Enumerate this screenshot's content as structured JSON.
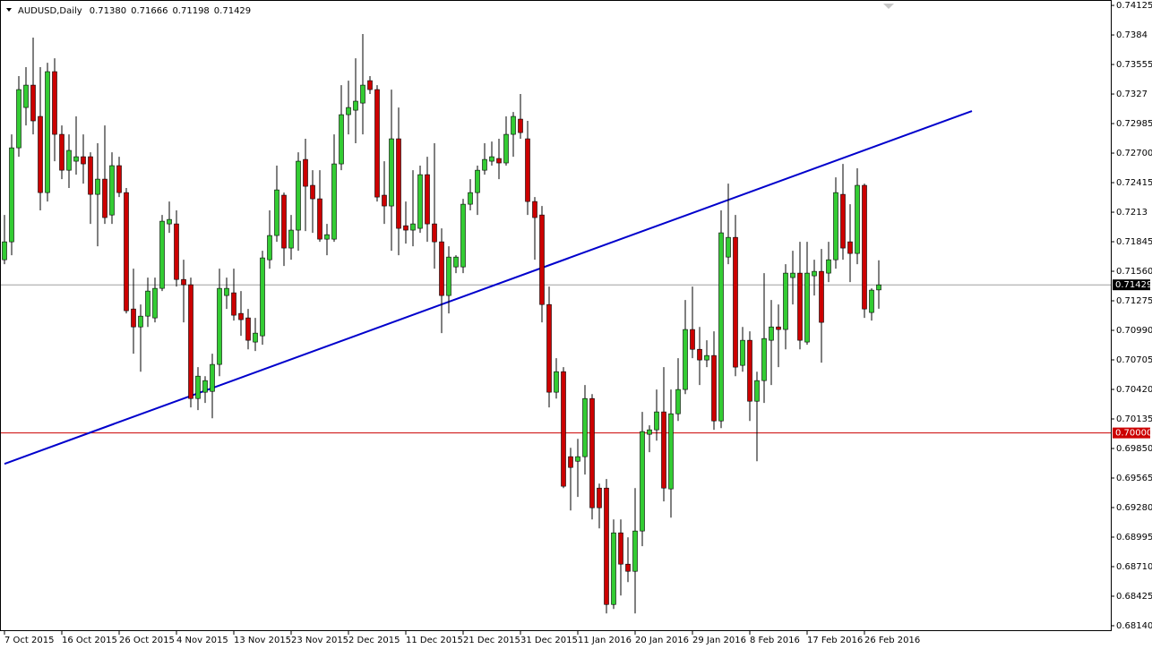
{
  "chart_data": {
    "type": "candlestick",
    "title": "AUDUSD,Daily",
    "header_values": [
      "0.71380",
      "0.71666",
      "0.71198",
      "0.71429"
    ],
    "categories": [
      "7 Oct 2015",
      null,
      null,
      null,
      null,
      null,
      null,
      null,
      "16 Oct 2015",
      null,
      null,
      null,
      null,
      null,
      null,
      null,
      "26 Oct 2015",
      null,
      null,
      null,
      null,
      null,
      null,
      null,
      "4 Nov 2015",
      null,
      null,
      null,
      null,
      null,
      null,
      null,
      "13 Nov 2015",
      null,
      null,
      null,
      null,
      null,
      null,
      null,
      "23 Nov 2015",
      null,
      null,
      null,
      null,
      null,
      null,
      null,
      "2 Dec 2015",
      null,
      null,
      null,
      null,
      null,
      null,
      null,
      "11 Dec 2015",
      null,
      null,
      null,
      null,
      null,
      null,
      null,
      "21 Dec 2015",
      null,
      null,
      null,
      null,
      null,
      null,
      null,
      "31 Dec 2015",
      null,
      null,
      null,
      null,
      null,
      null,
      null,
      "11 Jan 2016",
      null,
      null,
      null,
      null,
      null,
      null,
      null,
      "20 Jan 2016",
      null,
      null,
      null,
      null,
      null,
      null,
      null,
      "29 Jan 2016",
      null,
      null,
      null,
      null,
      null,
      null,
      null,
      "8 Feb 2016",
      null,
      null,
      null,
      null,
      null,
      null,
      null,
      "17 Feb 2016",
      null,
      null,
      null,
      null,
      null,
      null,
      null,
      "26 Feb 2016",
      null,
      null
    ],
    "open": [
      0.71671,
      0.71844,
      0.72751,
      0.7314,
      0.73356,
      0.73054,
      0.72319,
      0.73486,
      0.72881,
      0.72535,
      0.72622,
      0.72665,
      0.72665,
      0.72302,
      0.72449,
      0.72103,
      0.72579,
      0.72319,
      0.71196,
      0.71023,
      0.71127,
      0.7111,
      0.71395,
      0.72017,
      0.72017,
      0.71481,
      0.7143,
      0.70332,
      0.70393,
      0.70401,
      0.70661,
      0.71326,
      0.71352,
      0.71153,
      0.7111,
      0.70877,
      0.70937,
      0.71671,
      0.71905,
      0.72294,
      0.71784,
      0.71957,
      0.72639,
      0.72389,
      0.72259,
      0.7187,
      0.7187,
      0.72596,
      0.73071,
      0.73114,
      0.73183,
      0.73399,
      0.73313,
      0.72294,
      0.7219,
      0.72838,
      0.71999,
      0.71957,
      0.71974,
      0.72492,
      0.72017,
      0.71844,
      0.71326,
      0.71602,
      0.71602,
      0.72207,
      0.72319,
      0.72535,
      0.72622,
      0.72648,
      0.72605,
      0.72881,
      0.73028,
      0.72838,
      0.72233,
      0.72103,
      0.71239,
      0.70393,
      0.70591,
      0.69771,
      0.69727,
      0.69771,
      0.70332,
      0.69468,
      0.69468,
      0.68345,
      0.69036,
      0.68734,
      0.68665,
      0.69054,
      0.69987,
      0.7003,
      0.70203,
      0.6946,
      0.70185,
      0.70419,
      0.70998,
      0.70807,
      0.70704,
      0.70747,
      0.70116,
      0.71697,
      0.71887,
      0.70652,
      0.70894,
      0.70306,
      0.70505,
      0.70894,
      0.71023,
      0.70998,
      0.71499,
      0.71542,
      0.70877,
      0.71516,
      0.71559,
      0.71542,
      0.71671,
      0.72302,
      0.71844,
      0.71732,
      0.72389,
      0.71162,
      0.7138
    ],
    "high": [
      0.72103,
      0.72881,
      0.73443,
      0.73529,
      0.73814,
      0.73529,
      0.73572,
      0.73615,
      0.72967,
      0.72881,
      0.73054,
      0.72881,
      0.72708,
      0.72795,
      0.72967,
      0.72708,
      0.72665,
      0.72363,
      0.71585,
      0.71239,
      0.71499,
      0.71499,
      0.72103,
      0.72233,
      0.72147,
      0.71671,
      0.71499,
      0.70635,
      0.70548,
      0.70764,
      0.71585,
      0.71499,
      0.71585,
      0.71369,
      0.71196,
      0.7111,
      0.71758,
      0.72147,
      0.72579,
      0.72319,
      0.72103,
      0.72708,
      0.72838,
      0.72535,
      0.72535,
      0.72017,
      0.72881,
      0.73356,
      0.73399,
      0.73615,
      0.73849,
      0.73443,
      0.73356,
      0.72622,
      0.73313,
      0.7314,
      0.72233,
      0.72535,
      0.72579,
      0.72665,
      0.72795,
      0.71974,
      0.71801,
      0.71715,
      0.72259,
      0.72449,
      0.72579,
      0.72795,
      0.72812,
      0.72838,
      0.73054,
      0.73097,
      0.7327,
      0.73011,
      0.72276,
      0.7219,
      0.71412,
      0.70721,
      0.70635,
      0.69857,
      0.69943,
      0.70462,
      0.70375,
      0.69511,
      0.69555,
      0.69166,
      0.69166,
      0.68993,
      0.69468,
      0.70203,
      0.70073,
      0.70419,
      0.70635,
      0.70419,
      0.70721,
      0.71283,
      0.71412,
      0.71023,
      0.70894,
      0.7098,
      0.72147,
      0.72406,
      0.72103,
      0.71023,
      0.7098,
      0.70591,
      0.71542,
      0.71283,
      0.71239,
      0.71628,
      0.71758,
      0.71844,
      0.71844,
      0.71671,
      0.71775,
      0.71844,
      0.72466,
      0.72596,
      0.72207,
      0.72553,
      0.72406,
      0.71395,
      0.71666
    ],
    "low": [
      0.71628,
      0.71715,
      0.72665,
      0.72967,
      0.72881,
      0.72147,
      0.72233,
      0.72622,
      0.72449,
      0.72363,
      0.72492,
      0.72406,
      0.72017,
      0.71801,
      0.72017,
      0.72017,
      0.72276,
      0.71153,
      0.70764,
      0.70591,
      0.71023,
      0.71067,
      0.71369,
      0.71931,
      0.71412,
      0.71067,
      0.70246,
      0.7022,
      0.70289,
      0.70142,
      0.70548,
      0.71196,
      0.71084,
      0.70937,
      0.70807,
      0.7079,
      0.70851,
      0.71585,
      0.71844,
      0.71611,
      0.71671,
      0.71758,
      0.71948,
      0.71931,
      0.71844,
      0.71715,
      0.71844,
      0.72535,
      0.72881,
      0.72795,
      0.72881,
      0.7327,
      0.72233,
      0.72017,
      0.71758,
      0.71715,
      0.71827,
      0.71801,
      0.71931,
      0.71844,
      0.71585,
      0.70963,
      0.71153,
      0.71542,
      0.71542,
      0.72147,
      0.72103,
      0.72492,
      0.72579,
      0.72449,
      0.72579,
      0.72665,
      0.72838,
      0.72103,
      0.71671,
      0.71067,
      0.70246,
      0.70332,
      0.69468,
      0.69252,
      0.69382,
      0.69598,
      0.69166,
      0.69079,
      0.68259,
      0.68302,
      0.68431,
      0.68561,
      0.68259,
      0.68907,
      0.69814,
      0.69926,
      0.69339,
      0.69183,
      0.70116,
      0.70375,
      0.70721,
      0.70462,
      0.70635,
      0.7003,
      0.70047,
      0.71628,
      0.70548,
      0.70591,
      0.70116,
      0.69727,
      0.70289,
      0.70462,
      0.70635,
      0.70807,
      0.71239,
      0.70807,
      0.70851,
      0.71326,
      0.70678,
      0.71455,
      0.71585,
      0.71671,
      0.71455,
      0.71628,
      0.7111,
      0.71084,
      0.71198
    ],
    "close": [
      0.71844,
      0.72751,
      0.73313,
      0.73356,
      0.73011,
      0.72319,
      0.73486,
      0.72881,
      0.72535,
      0.72726,
      0.72665,
      0.72596,
      0.72302,
      0.72449,
      0.72078,
      0.72579,
      0.72319,
      0.71179,
      0.71023,
      0.71127,
      0.71369,
      0.71395,
      0.72043,
      0.7206,
      0.71481,
      0.7143,
      0.70332,
      0.70548,
      0.70505,
      0.70661,
      0.71395,
      0.71395,
      0.71136,
      0.71093,
      0.70894,
      0.70963,
      0.71689,
      0.71905,
      0.72345,
      0.71784,
      0.71957,
      0.72622,
      0.7238,
      0.72259,
      0.7187,
      0.71913,
      0.72596,
      0.73071,
      0.7314,
      0.73201,
      0.73356,
      0.73313,
      0.72276,
      0.7219,
      0.72838,
      0.71974,
      0.71957,
      0.72017,
      0.72492,
      0.72017,
      0.71844,
      0.71326,
      0.71697,
      0.71697,
      0.72207,
      0.72319,
      0.72535,
      0.72639,
      0.72665,
      0.72605,
      0.72881,
      0.73054,
      0.72898,
      0.72233,
      0.72078,
      0.71239,
      0.70393,
      0.70591,
      0.69486,
      0.69667,
      0.69771,
      0.70332,
      0.69278,
      0.69278,
      0.68345,
      0.69036,
      0.68734,
      0.68665,
      0.69054,
      0.70013,
      0.7003,
      0.70203,
      0.69468,
      0.70185,
      0.70419,
      0.70998,
      0.70807,
      0.70704,
      0.70747,
      0.70116,
      0.71931,
      0.71887,
      0.70635,
      0.70894,
      0.70306,
      0.70505,
      0.70911,
      0.71023,
      0.70998,
      0.71542,
      0.71542,
      0.70894,
      0.71542,
      0.71559,
      0.71067,
      0.71671,
      0.72319,
      0.71784,
      0.71732,
      0.72389,
      0.71196,
      0.71378,
      0.71429
    ],
    "up_color": "#33cc33",
    "down_color": "#cc0000",
    "ylim": [
      0.68088,
      0.7416
    ],
    "yticks": [
      0.74125,
      0.7384,
      0.73555,
      0.7327,
      0.72985,
      {
        "value": 0.727,
        "label": "0.72700"
      },
      0.72415,
      0.7213,
      0.71845,
      {
        "value": 0.7156,
        "label": "0.71560"
      },
      0.71275,
      {
        "value": 0.7099,
        "label": "0.70990"
      },
      0.70705,
      {
        "value": 0.7042,
        "label": "0.70420"
      },
      0.70135,
      {
        "value": 0.6985,
        "label": "0.69850"
      },
      0.69565,
      {
        "value": 0.6928,
        "label": "0.69280"
      },
      0.68995,
      {
        "value": 0.6871,
        "label": "0.68710"
      },
      0.68425,
      {
        "value": 0.6814,
        "label": "0.68140"
      }
    ],
    "levels": [
      {
        "value": 0.7,
        "label": "0.70000",
        "color": "#cc0000"
      },
      {
        "value": 0.71429,
        "label": "0.71429",
        "color": "#a0a0a0"
      }
    ],
    "trendline": {
      "values": [
        0.69702,
        0.73106
      ],
      "color": "#0000cc"
    }
  }
}
